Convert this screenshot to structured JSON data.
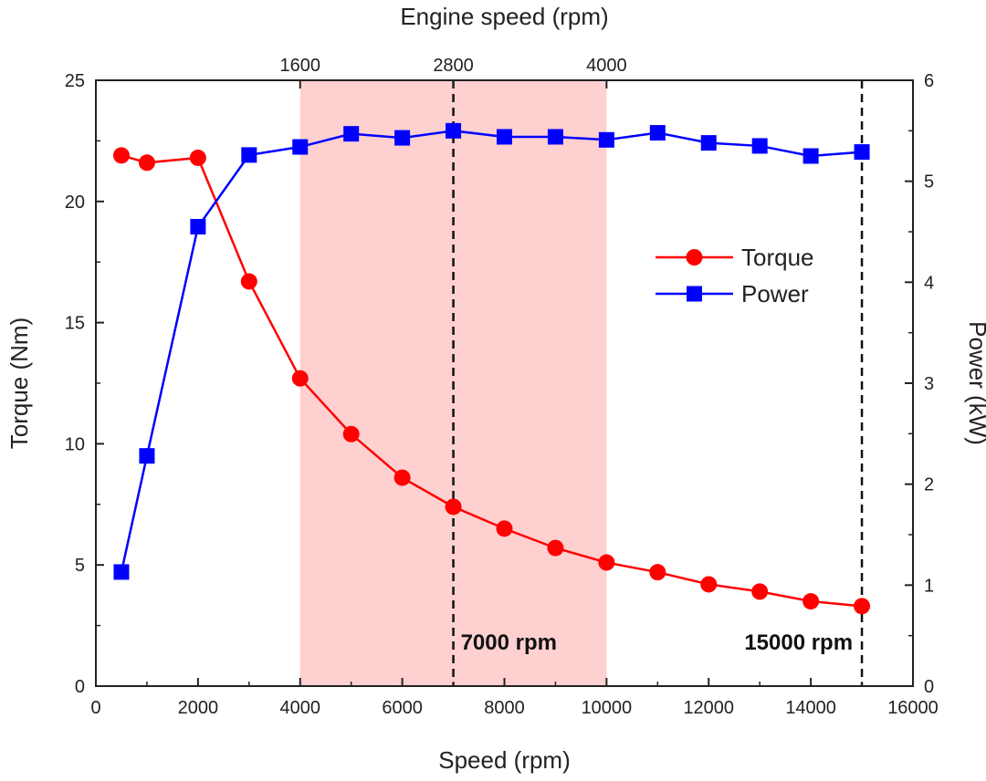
{
  "chart_data": {
    "type": "line",
    "x_bottom": {
      "label": "Speed (rpm)",
      "range": [
        0,
        16000
      ],
      "ticks": [
        0,
        2000,
        4000,
        6000,
        8000,
        10000,
        12000,
        14000,
        16000
      ]
    },
    "x_top": {
      "label": "Engine speed (rpm)",
      "ticks": [
        {
          "at": 4000,
          "label": "1600"
        },
        {
          "at": 7000,
          "label": "2800"
        },
        {
          "at": 10000,
          "label": "4000"
        }
      ]
    },
    "y_left": {
      "label": "Torque (Nm)",
      "range": [
        0,
        25
      ],
      "ticks": [
        0,
        5,
        10,
        15,
        20,
        25
      ]
    },
    "y_right": {
      "label": "Power (kW)",
      "range": [
        0,
        6
      ],
      "ticks": [
        0,
        1,
        2,
        3,
        4,
        5,
        6
      ]
    },
    "series": [
      {
        "name": "Torque",
        "axis": "left",
        "color": "#ff0000",
        "marker": "circle",
        "x": [
          500,
          1000,
          2000,
          3000,
          4000,
          5000,
          6000,
          7000,
          8000,
          9000,
          10000,
          11000,
          12000,
          13000,
          14000,
          15000
        ],
        "values": [
          21.9,
          21.6,
          21.8,
          16.7,
          12.7,
          10.4,
          8.6,
          7.4,
          6.5,
          5.7,
          5.1,
          4.7,
          4.2,
          3.9,
          3.5,
          3.3
        ]
      },
      {
        "name": "Power",
        "axis": "right",
        "color": "#0000ff",
        "marker": "square",
        "x": [
          500,
          1000,
          2000,
          3000,
          4000,
          5000,
          6000,
          7000,
          8000,
          9000,
          10000,
          11000,
          12000,
          13000,
          14000,
          15000
        ],
        "values": [
          1.13,
          2.28,
          4.55,
          5.26,
          5.34,
          5.47,
          5.43,
          5.5,
          5.44,
          5.44,
          5.41,
          5.48,
          5.38,
          5.35,
          5.25,
          5.29
        ]
      }
    ],
    "shaded_region": {
      "from": 4000,
      "to": 10000,
      "color": "#ffd0d0"
    },
    "vlines": [
      {
        "at": 7000,
        "label": "7000 rpm"
      },
      {
        "at": 15000,
        "label": "15000 rpm"
      }
    ],
    "legend": {
      "position": "right-middle",
      "entries": [
        "Torque",
        "Power"
      ]
    }
  }
}
